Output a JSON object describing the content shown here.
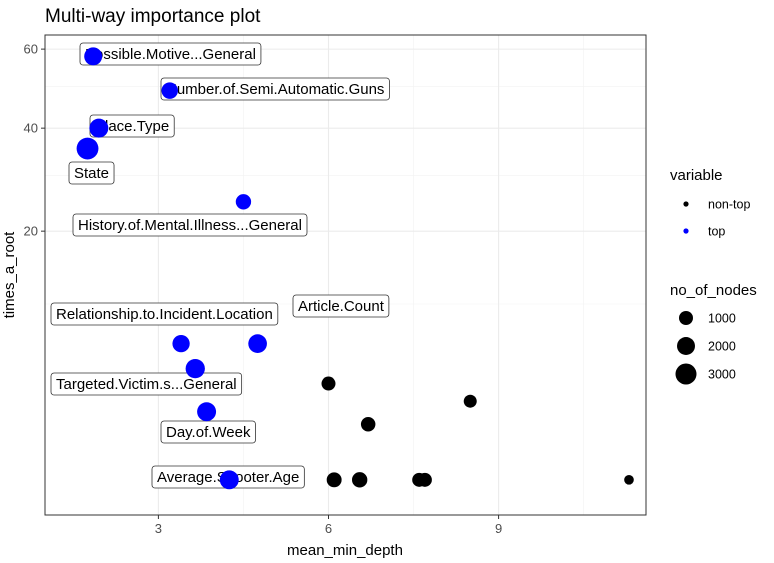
{
  "chart_data": {
    "type": "scatter",
    "title": "Multi-way importance plot",
    "xlabel": "mean_min_depth",
    "ylabel": "times_a_root",
    "x_ticks": [
      3,
      6,
      9
    ],
    "y_ticks": [
      20,
      40,
      60
    ],
    "y_scale": "sqrt",
    "xlim": [
      1.0,
      11.6
    ],
    "ylim": [
      -0.4,
      64
    ],
    "grid": true,
    "legend_position": "right",
    "legend": {
      "color_title": "variable",
      "color_entries": [
        {
          "label": "non-top",
          "color": "#000000"
        },
        {
          "label": "top",
          "color": "#0000ff"
        }
      ],
      "size_title": "no_of_nodes",
      "size_entries": [
        {
          "label": "1000",
          "value": 1000
        },
        {
          "label": "2000",
          "value": 2000
        },
        {
          "label": "3000",
          "value": 3000
        }
      ]
    },
    "points": [
      {
        "variable": "top",
        "label": "Possible.Motive...General",
        "x": 1.85,
        "y": 58,
        "nodes": 2000
      },
      {
        "variable": "top",
        "label": "Number.of.Semi.Automatic.Guns",
        "x": 3.2,
        "y": 49,
        "nodes": 1600
      },
      {
        "variable": "top",
        "label": "Place.Type",
        "x": 1.95,
        "y": 40,
        "nodes": 2300
      },
      {
        "variable": "top",
        "label": "State",
        "x": 1.75,
        "y": 35.5,
        "nodes": 3300
      },
      {
        "variable": "top",
        "label": "History.of.Mental.Illness...General",
        "x": 4.5,
        "y": 25,
        "nodes": 1300
      },
      {
        "variable": "top",
        "label": "Article.Count",
        "x": 4.75,
        "y": 6,
        "nodes": 2200
      },
      {
        "variable": "top",
        "label": "Relationship.to.Incident.Location",
        "x": 3.4,
        "y": 6,
        "nodes": 1800
      },
      {
        "variable": "top",
        "label": "Targeted.Victim.s...General",
        "x": 3.65,
        "y": 4,
        "nodes": 2400
      },
      {
        "variable": "top",
        "label": "Day.of.Week",
        "x": 3.85,
        "y": 1.5,
        "nodes": 2300
      },
      {
        "variable": "top",
        "label": "Average.Shooter.Age",
        "x": 4.25,
        "y": 0,
        "nodes": 2300
      },
      {
        "variable": "non-top",
        "x": 6.0,
        "y": 3,
        "nodes": 1000
      },
      {
        "variable": "non-top",
        "x": 8.5,
        "y": 2,
        "nodes": 800
      },
      {
        "variable": "non-top",
        "x": 6.7,
        "y": 1,
        "nodes": 1100
      },
      {
        "variable": "non-top",
        "x": 6.1,
        "y": 0,
        "nodes": 1200
      },
      {
        "variable": "non-top",
        "x": 6.55,
        "y": 0,
        "nodes": 1300
      },
      {
        "variable": "non-top",
        "x": 7.6,
        "y": 0,
        "nodes": 1000
      },
      {
        "variable": "non-top",
        "x": 7.7,
        "y": 0,
        "nodes": 1000
      },
      {
        "variable": "non-top",
        "x": 11.3,
        "y": 0,
        "nodes": 300
      }
    ]
  }
}
